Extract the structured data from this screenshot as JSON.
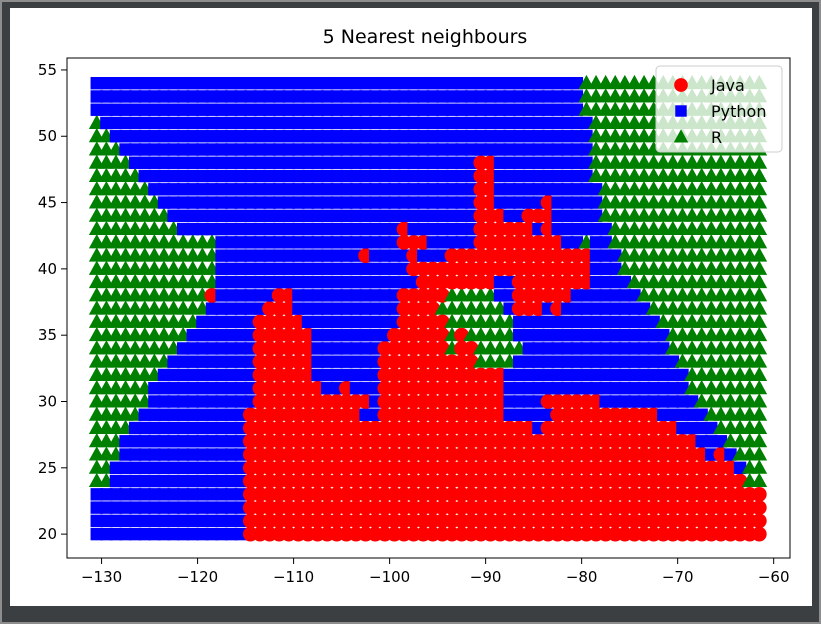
{
  "chart_data": {
    "type": "scatter",
    "title": "5 Nearest neighbours",
    "xlabel": "",
    "ylabel": "",
    "xlim": [
      -133.6,
      -58.3
    ],
    "ylim": [
      18.2,
      55.9
    ],
    "xticks": [
      -130,
      -120,
      -110,
      -100,
      -90,
      -80,
      -70,
      -60
    ],
    "yticks": [
      20,
      25,
      30,
      35,
      40,
      45,
      50,
      55
    ],
    "x_grid": {
      "start": -130.5,
      "stop": -61,
      "step": 1
    },
    "y_grid": {
      "start": 20,
      "stop": 54,
      "step": 1
    },
    "legend": {
      "position": "upper right",
      "entries": [
        {
          "name": "Java",
          "marker": "circle",
          "color": "#ff0000"
        },
        {
          "name": "Python",
          "marker": "square",
          "color": "#0000ff"
        },
        {
          "name": "R",
          "marker": "triangle",
          "color": "#008000"
        }
      ]
    },
    "regions_description": "Each grid row y lists class labels by x-interval; J=Java, P=Python, R=R",
    "rows": {
      "54": [
        [
          "P",
          -130.5,
          -80.5
        ],
        [
          "R",
          -79.5,
          -61
        ]
      ],
      "53": [
        [
          "P",
          -130.5,
          -80.5
        ],
        [
          "R",
          -79.5,
          -61
        ]
      ],
      "52": [
        [
          "P",
          -130.5,
          -80.5
        ],
        [
          "R",
          -79.5,
          -61
        ]
      ],
      "51": [
        [
          "R",
          -130.5,
          -130.5
        ],
        [
          "P",
          -129.5,
          -79.5
        ],
        [
          "R",
          -78.5,
          -61
        ]
      ],
      "50": [
        [
          "R",
          -130.5,
          -129.5
        ],
        [
          "P",
          -128.5,
          -79.5
        ],
        [
          "R",
          -78.5,
          -61
        ]
      ],
      "49": [
        [
          "R",
          -130.5,
          -128.5
        ],
        [
          "P",
          -127.5,
          -79.5
        ],
        [
          "R",
          -78.5,
          -61
        ]
      ],
      "48": [
        [
          "R",
          -130.5,
          -127.5
        ],
        [
          "P",
          -126.5,
          -91.5
        ],
        [
          "J",
          -90.5,
          -89.5
        ],
        [
          "P",
          -88.5,
          -79.5
        ],
        [
          "R",
          -78.5,
          -61
        ]
      ],
      "47": [
        [
          "R",
          -130.5,
          -126.5
        ],
        [
          "P",
          -125.5,
          -91.5
        ],
        [
          "J",
          -90.5,
          -89.5
        ],
        [
          "P",
          -88.5,
          -79.5
        ],
        [
          "R",
          -78.5,
          -61
        ]
      ],
      "46": [
        [
          "R",
          -130.5,
          -125.5
        ],
        [
          "P",
          -124.5,
          -91.5
        ],
        [
          "J",
          -90.5,
          -89.5
        ],
        [
          "P",
          -88.5,
          -78.5
        ],
        [
          "R",
          -77.5,
          -61
        ]
      ],
      "45": [
        [
          "R",
          -130.5,
          -124.5
        ],
        [
          "P",
          -123.5,
          -91.5
        ],
        [
          "J",
          -90.5,
          -89.5
        ],
        [
          "P",
          -88.5,
          -84.5
        ],
        [
          "J",
          -83.5,
          -83.5
        ],
        [
          "P",
          -82.5,
          -78.5
        ],
        [
          "R",
          -77.5,
          -61
        ]
      ],
      "44": [
        [
          "R",
          -130.5,
          -123.5
        ],
        [
          "P",
          -122.5,
          -91.5
        ],
        [
          "J",
          -90.5,
          -88.5
        ],
        [
          "P",
          -87.5,
          -86.5
        ],
        [
          "J",
          -85.5,
          -83.5
        ],
        [
          "P",
          -82.5,
          -78.5
        ],
        [
          "R",
          -77.5,
          -61
        ]
      ],
      "43": [
        [
          "R",
          -130.5,
          -122.5
        ],
        [
          "P",
          -121.5,
          -99.5
        ],
        [
          "J",
          -98.5,
          -98.5
        ],
        [
          "P",
          -97.5,
          -91.5
        ],
        [
          "J",
          -90.5,
          -85.5
        ],
        [
          "P",
          -84.5,
          -84.5
        ],
        [
          "J",
          -83.5,
          -83.5
        ],
        [
          "P",
          -82.5,
          -77.5
        ],
        [
          "R",
          -76.5,
          -61
        ]
      ],
      "42": [
        [
          "R",
          -130.5,
          -118.5
        ],
        [
          "P",
          -117.5,
          -99.5
        ],
        [
          "J",
          -98.5,
          -96.5
        ],
        [
          "P",
          -95.5,
          -91.5
        ],
        [
          "J",
          -90.5,
          -82.5
        ],
        [
          "P",
          -81.5,
          -80.5
        ],
        [
          "R",
          -79.5,
          -79.5
        ],
        [
          "P",
          -78.5,
          -77.5
        ],
        [
          "R",
          -76.5,
          -61
        ]
      ],
      "41": [
        [
          "R",
          -130.5,
          -118.5
        ],
        [
          "P",
          -117.5,
          -103.5
        ],
        [
          "J",
          -102.5,
          -102.5
        ],
        [
          "P",
          -101.5,
          -98.5
        ],
        [
          "J",
          -97.5,
          -97.5
        ],
        [
          "P",
          -96.5,
          -94.5
        ],
        [
          "J",
          -93.5,
          -79.5
        ],
        [
          "P",
          -78.5,
          -76.5
        ],
        [
          "R",
          -75.5,
          -61
        ]
      ],
      "40": [
        [
          "R",
          -130.5,
          -118.5
        ],
        [
          "P",
          -117.5,
          -98.5
        ],
        [
          "J",
          -97.5,
          -79.5
        ],
        [
          "P",
          -78.5,
          -76.5
        ],
        [
          "R",
          -75.5,
          -61
        ]
      ],
      "39": [
        [
          "R",
          -130.5,
          -118.5
        ],
        [
          "P",
          -117.5,
          -97.5
        ],
        [
          "J",
          -96.5,
          -89.5
        ],
        [
          "P",
          -88.5,
          -87.5
        ],
        [
          "J",
          -86.5,
          -79.5
        ],
        [
          "P",
          -78.5,
          -75.5
        ],
        [
          "R",
          -74.5,
          -61
        ]
      ],
      "38": [
        [
          "R",
          -130.5,
          -119.5
        ],
        [
          "J",
          -118.5,
          -118.5
        ],
        [
          "P",
          -117.5,
          -112.5
        ],
        [
          "J",
          -111.5,
          -110.5
        ],
        [
          "P",
          -109.5,
          -99.5
        ],
        [
          "J",
          -98.5,
          -94.5
        ],
        [
          "R",
          -93.5,
          -89.5
        ],
        [
          "P",
          -88.5,
          -87.5
        ],
        [
          "J",
          -86.5,
          -81.5
        ],
        [
          "P",
          -80.5,
          -74.5
        ],
        [
          "R",
          -73.5,
          -61
        ]
      ],
      "37": [
        [
          "R",
          -130.5,
          -119.5
        ],
        [
          "P",
          -118.5,
          -113.5
        ],
        [
          "J",
          -112.5,
          -110.5
        ],
        [
          "P",
          -109.5,
          -99.5
        ],
        [
          "J",
          -98.5,
          -95.5
        ],
        [
          "R",
          -94.5,
          -88.5
        ],
        [
          "P",
          -87.5,
          -87.5
        ],
        [
          "J",
          -86.5,
          -84.5
        ],
        [
          "P",
          -83.5,
          -83.5
        ],
        [
          "J",
          -82.5,
          -82.5
        ],
        [
          "P",
          -81.5,
          -73.5
        ],
        [
          "R",
          -72.5,
          -61
        ]
      ],
      "36": [
        [
          "R",
          -130.5,
          -120.5
        ],
        [
          "P",
          -119.5,
          -114.5
        ],
        [
          "J",
          -113.5,
          -109.5
        ],
        [
          "P",
          -108.5,
          -99.5
        ],
        [
          "J",
          -98.5,
          -94.5
        ],
        [
          "R",
          -93.5,
          -87.5
        ],
        [
          "P",
          -86.5,
          -72.5
        ],
        [
          "R",
          -71.5,
          -61
        ]
      ],
      "35": [
        [
          "R",
          -130.5,
          -121.5
        ],
        [
          "P",
          -120.5,
          -114.5
        ],
        [
          "J",
          -113.5,
          -108.5
        ],
        [
          "P",
          -107.5,
          -100.5
        ],
        [
          "J",
          -99.5,
          -94.5
        ],
        [
          "R",
          -93.5,
          -93.5
        ],
        [
          "J",
          -92.5,
          -92.5
        ],
        [
          "R",
          -91.5,
          -87.5
        ],
        [
          "P",
          -86.5,
          -71.5
        ],
        [
          "R",
          -70.5,
          -61
        ]
      ],
      "34": [
        [
          "R",
          -130.5,
          -122.5
        ],
        [
          "P",
          -121.5,
          -114.5
        ],
        [
          "J",
          -113.5,
          -108.5
        ],
        [
          "P",
          -107.5,
          -101.5
        ],
        [
          "J",
          -100.5,
          -94.5
        ],
        [
          "R",
          -93.5,
          -93.5
        ],
        [
          "J",
          -92.5,
          -91.5
        ],
        [
          "R",
          -90.5,
          -86.5
        ],
        [
          "P",
          -85.5,
          -71.5
        ],
        [
          "R",
          -70.5,
          -61
        ]
      ],
      "33": [
        [
          "R",
          -130.5,
          -123.5
        ],
        [
          "P",
          -122.5,
          -114.5
        ],
        [
          "J",
          -113.5,
          -108.5
        ],
        [
          "P",
          -107.5,
          -101.5
        ],
        [
          "J",
          -100.5,
          -91.5
        ],
        [
          "R",
          -90.5,
          -87.5
        ],
        [
          "P",
          -86.5,
          -70.5
        ],
        [
          "R",
          -69.5,
          -61
        ]
      ],
      "32": [
        [
          "R",
          -130.5,
          -124.5
        ],
        [
          "P",
          -123.5,
          -114.5
        ],
        [
          "J",
          -113.5,
          -108.5
        ],
        [
          "P",
          -107.5,
          -101.5
        ],
        [
          "J",
          -100.5,
          -88.5
        ],
        [
          "P",
          -87.5,
          -69.5
        ],
        [
          "R",
          -68.5,
          -61
        ]
      ],
      "31": [
        [
          "R",
          -130.5,
          -125.5
        ],
        [
          "P",
          -124.5,
          -114.5
        ],
        [
          "J",
          -113.5,
          -107.5
        ],
        [
          "P",
          -106.5,
          -105.5
        ],
        [
          "J",
          -104.5,
          -104.5
        ],
        [
          "P",
          -103.5,
          -101.5
        ],
        [
          "J",
          -100.5,
          -88.5
        ],
        [
          "P",
          -87.5,
          -69.5
        ],
        [
          "R",
          -68.5,
          -61
        ]
      ],
      "30": [
        [
          "R",
          -130.5,
          -125.5
        ],
        [
          "P",
          -124.5,
          -114.5
        ],
        [
          "J",
          -113.5,
          -102.5
        ],
        [
          "P",
          -101.5,
          -101.5
        ],
        [
          "J",
          -100.5,
          -88.5
        ],
        [
          "P",
          -87.5,
          -84.5
        ],
        [
          "J",
          -83.5,
          -78.5
        ],
        [
          "P",
          -77.5,
          -68.5
        ],
        [
          "R",
          -67.5,
          -61
        ]
      ],
      "29": [
        [
          "R",
          -130.5,
          -126.5
        ],
        [
          "P",
          -125.5,
          -115.5
        ],
        [
          "J",
          -114.5,
          -103.5
        ],
        [
          "P",
          -102.5,
          -101.5
        ],
        [
          "J",
          -100.5,
          -88.5
        ],
        [
          "P",
          -87.5,
          -83.5
        ],
        [
          "J",
          -82.5,
          -72.5
        ],
        [
          "P",
          -71.5,
          -67.5
        ],
        [
          "R",
          -66.5,
          -61
        ]
      ],
      "28": [
        [
          "R",
          -130.5,
          -127.5
        ],
        [
          "P",
          -126.5,
          -115.5
        ],
        [
          "J",
          -114.5,
          -85.5
        ],
        [
          "P",
          -84.5,
          -84.5
        ],
        [
          "J",
          -83.5,
          -70.5
        ],
        [
          "P",
          -69.5,
          -66.5
        ],
        [
          "R",
          -65.5,
          -61
        ]
      ],
      "27": [
        [
          "R",
          -130.5,
          -128.5
        ],
        [
          "P",
          -127.5,
          -115.5
        ],
        [
          "J",
          -114.5,
          -68.5
        ],
        [
          "P",
          -67.5,
          -65.5
        ],
        [
          "R",
          -64.5,
          -61
        ]
      ],
      "26": [
        [
          "R",
          -130.5,
          -128.5
        ],
        [
          "P",
          -127.5,
          -115.5
        ],
        [
          "J",
          -114.5,
          -67.5
        ],
        [
          "P",
          -66.5,
          -66.5
        ],
        [
          "J",
          -65.5,
          -65.5
        ],
        [
          "P",
          -64.5,
          -64.5
        ],
        [
          "R",
          -63.5,
          -61
        ]
      ],
      "25": [
        [
          "R",
          -130.5,
          -129.5
        ],
        [
          "P",
          -128.5,
          -115.5
        ],
        [
          "J",
          -114.5,
          -64.5
        ],
        [
          "P",
          -63.5,
          -63.5
        ],
        [
          "R",
          -62.5,
          -61
        ]
      ],
      "24": [
        [
          "R",
          -130.5,
          -129.5
        ],
        [
          "P",
          -128.5,
          -115.5
        ],
        [
          "J",
          -114.5,
          -63.5
        ],
        [
          "R",
          -62.5,
          -61
        ]
      ],
      "23": [
        [
          "P",
          -130.5,
          -115.5
        ],
        [
          "J",
          -114.5,
          -61
        ]
      ],
      "22": [
        [
          "P",
          -130.5,
          -115.5
        ],
        [
          "J",
          -114.5,
          -61
        ]
      ],
      "21": [
        [
          "P",
          -130.5,
          -115.5
        ],
        [
          "J",
          -114.5,
          -61
        ]
      ],
      "20": [
        [
          "P",
          -130.5,
          -115.5
        ],
        [
          "J",
          -114.5,
          -61
        ]
      ]
    }
  }
}
